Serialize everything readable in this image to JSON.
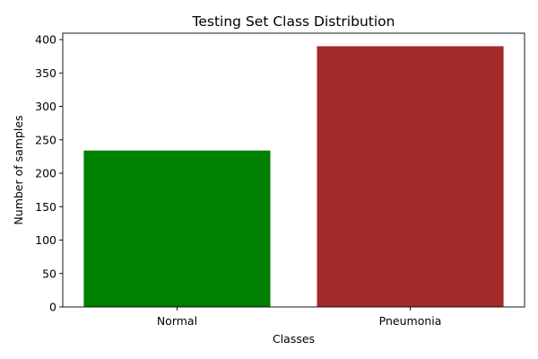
{
  "chart_data": {
    "type": "bar",
    "title": "Testing Set Class Distribution",
    "xlabel": "Classes",
    "ylabel": "Number of samples",
    "categories": [
      "Normal",
      "Pneumonia"
    ],
    "values": [
      234,
      390
    ],
    "colors": [
      "#008000",
      "#a52a2a"
    ],
    "ylim": [
      0,
      409.5
    ],
    "yticks": [
      0,
      50,
      100,
      150,
      200,
      250,
      300,
      350,
      400
    ],
    "grid": false,
    "legend": "none"
  }
}
